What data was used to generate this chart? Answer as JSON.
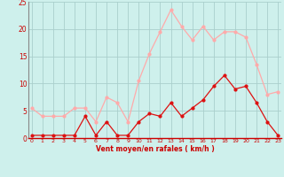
{
  "hours": [
    0,
    1,
    2,
    3,
    4,
    5,
    6,
    7,
    8,
    9,
    10,
    11,
    12,
    13,
    14,
    15,
    16,
    17,
    18,
    19,
    20,
    21,
    22,
    23
  ],
  "wind_avg": [
    0.5,
    0.5,
    0.5,
    0.5,
    0.5,
    4.0,
    0.5,
    3.0,
    0.5,
    0.5,
    3.0,
    4.5,
    4.0,
    6.5,
    4.0,
    5.5,
    7.0,
    9.5,
    11.5,
    9.0,
    9.5,
    6.5,
    3.0,
    0.5
  ],
  "wind_gust": [
    5.5,
    4.0,
    4.0,
    4.0,
    5.5,
    5.5,
    3.0,
    7.5,
    6.5,
    3.0,
    10.5,
    15.5,
    19.5,
    23.5,
    20.5,
    18.0,
    20.5,
    18.0,
    19.5,
    19.5,
    18.5,
    13.5,
    8.0,
    8.5
  ],
  "avg_color": "#dd1111",
  "gust_color": "#ffaaaa",
  "bg_color": "#cef0ec",
  "grid_color": "#aacfcc",
  "xlabel": "Vent moyen/en rafales ( km/h )",
  "xlabel_color": "#cc0000",
  "tick_color": "#cc0000",
  "ylim": [
    0,
    25
  ],
  "yticks": [
    0,
    5,
    10,
    15,
    20,
    25
  ],
  "xticks": [
    0,
    1,
    2,
    3,
    4,
    5,
    6,
    7,
    8,
    9,
    10,
    11,
    12,
    13,
    14,
    15,
    16,
    17,
    18,
    19,
    20,
    21,
    22,
    23
  ],
  "spine_color": "#888888",
  "bottom_spine_color": "#cc0000"
}
